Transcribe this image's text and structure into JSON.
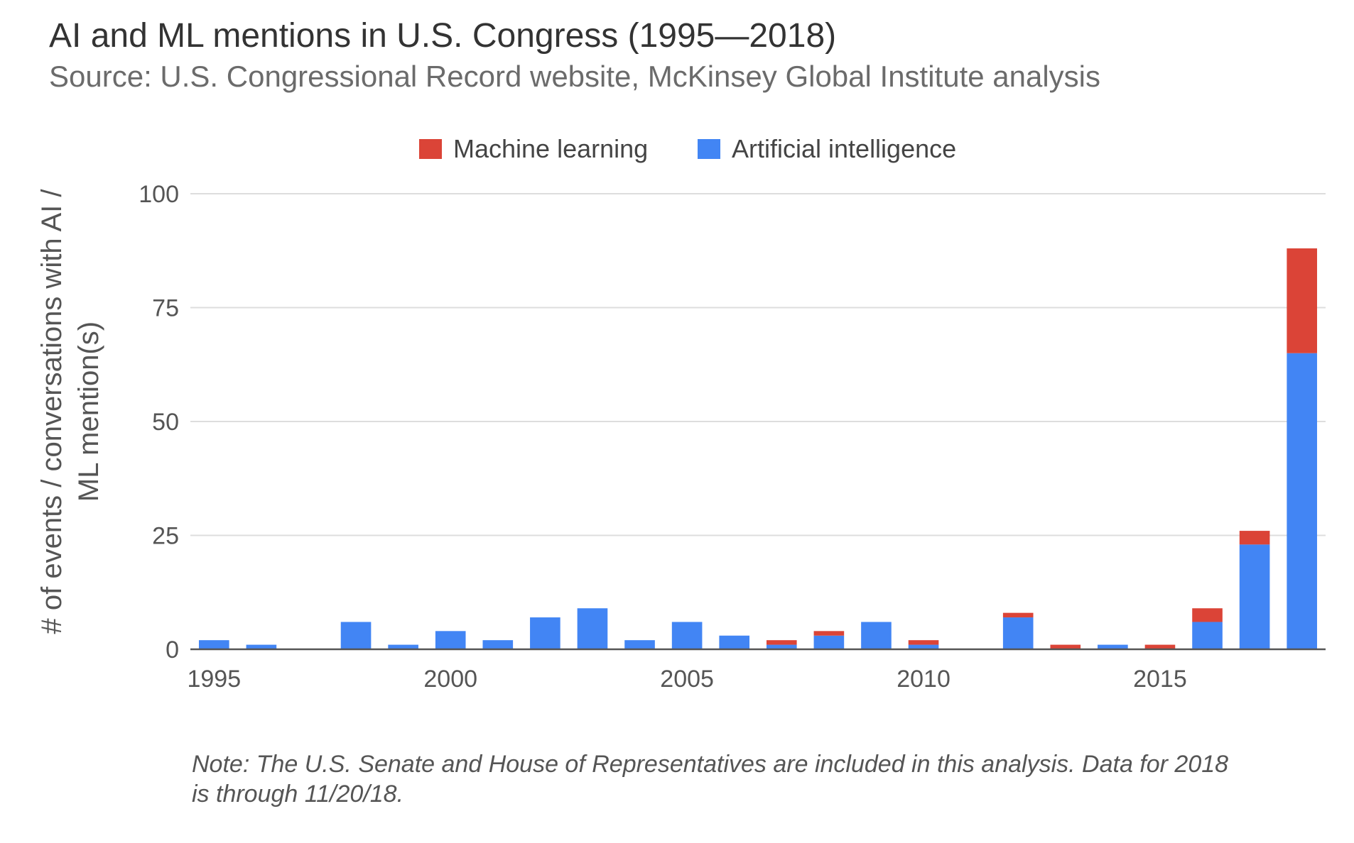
{
  "colors": {
    "machine_learning": "#db4437",
    "artificial_intelligence": "#4285f4"
  },
  "note_lines": [
    "Note: The U.S. Senate and House of Representatives are included in this analysis. Data for 2018",
    "is through 11/20/18."
  ],
  "chart_data": {
    "type": "bar",
    "stacked": true,
    "title": "AI and ML mentions in U.S. Congress (1995—2018)",
    "subtitle": "Source: U.S. Congressional Record website, McKinsey Global Institute analysis",
    "xlabel": "",
    "ylabel_lines": [
      "# of events / conversations with AI /",
      "ML mention(s)"
    ],
    "ylim": [
      0,
      100
    ],
    "y_ticks": [
      0,
      25,
      50,
      75,
      100
    ],
    "x_tick_labels": [
      "1995",
      "2000",
      "2005",
      "2010",
      "2015"
    ],
    "grid": true,
    "legend_position": "top",
    "categories": [
      1995,
      1996,
      1997,
      1998,
      1999,
      2000,
      2001,
      2002,
      2003,
      2004,
      2005,
      2006,
      2007,
      2008,
      2009,
      2010,
      2011,
      2012,
      2013,
      2014,
      2015,
      2016,
      2017,
      2018
    ],
    "series": [
      {
        "name": "Artificial intelligence",
        "values": [
          2,
          1,
          0,
          6,
          1,
          4,
          2,
          7,
          9,
          2,
          6,
          3,
          1,
          3,
          6,
          1,
          0,
          7,
          0,
          1,
          0,
          6,
          23,
          65
        ]
      },
      {
        "name": "Machine learning",
        "values": [
          0,
          0,
          0,
          0,
          0,
          0,
          0,
          0,
          0,
          0,
          0,
          0,
          1,
          1,
          0,
          1,
          0,
          1,
          1,
          0,
          1,
          3,
          3,
          23
        ]
      }
    ],
    "legend_order": [
      "Machine learning",
      "Artificial intelligence"
    ]
  }
}
